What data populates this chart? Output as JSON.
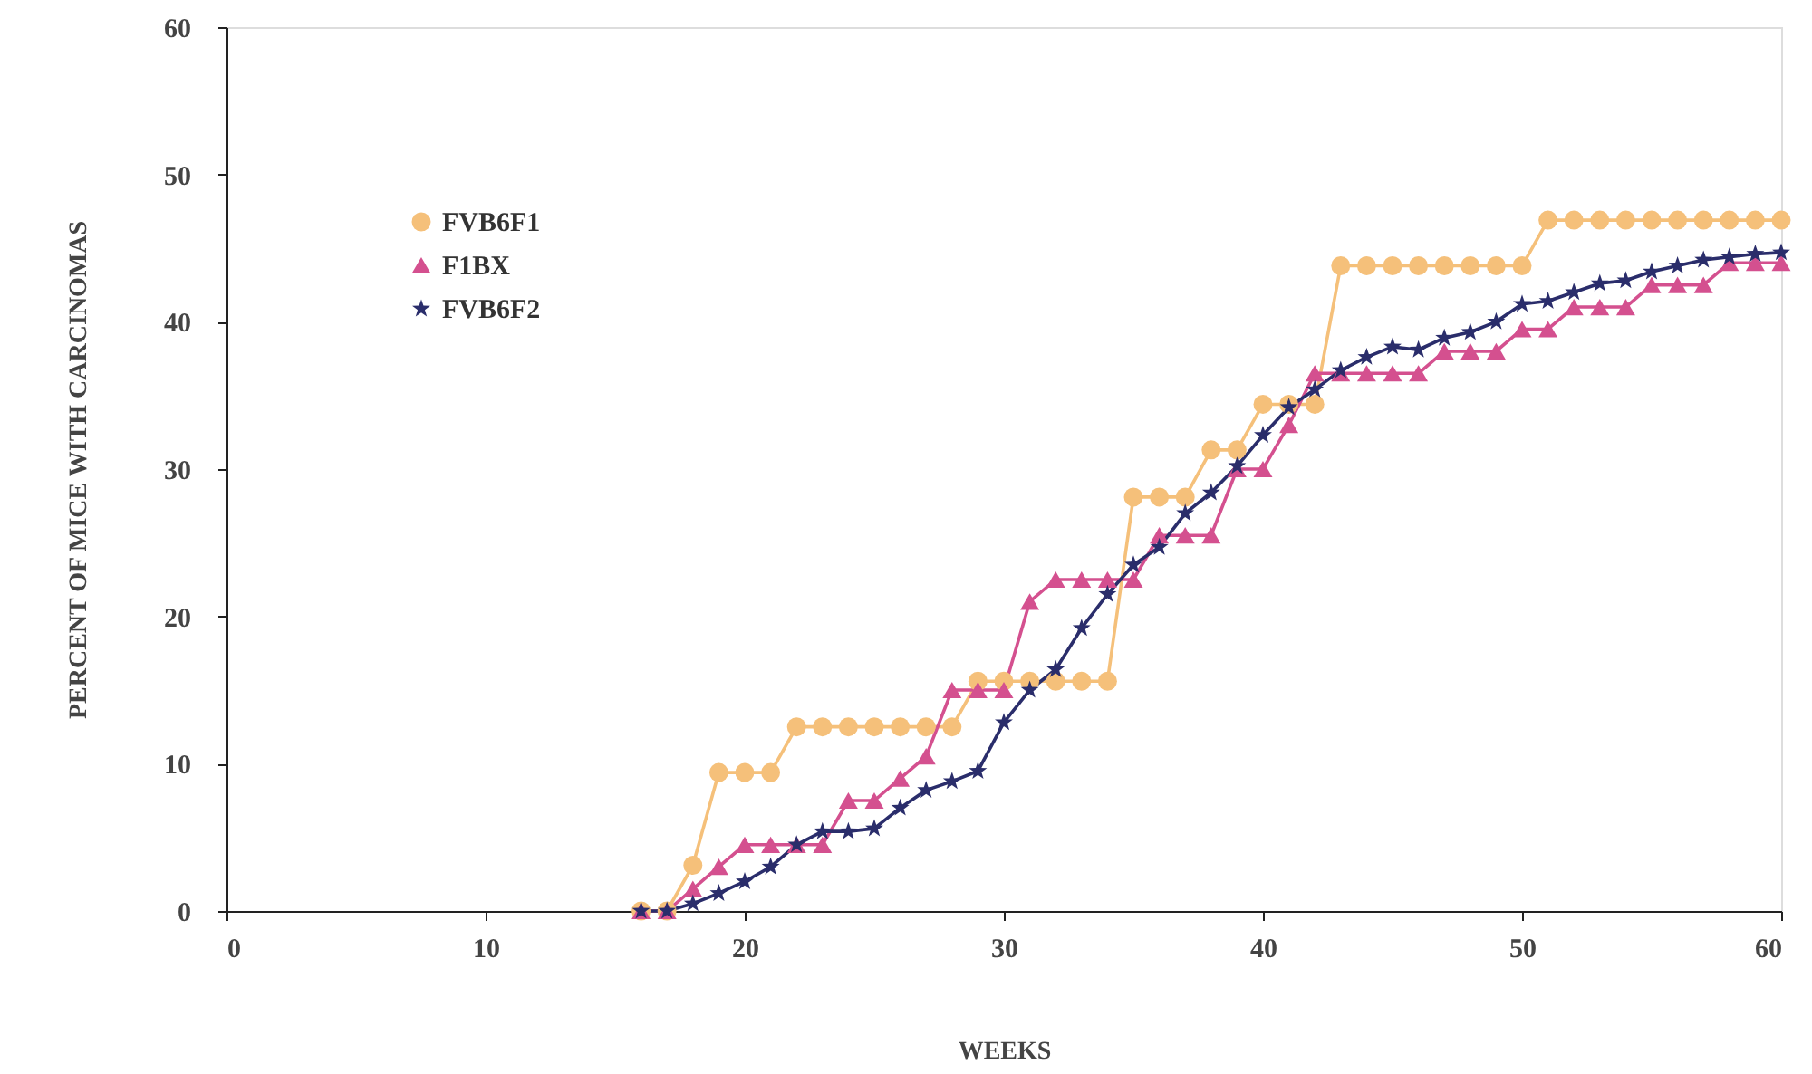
{
  "chart_data": {
    "type": "line",
    "xlabel": "WEEKS",
    "ylabel": "PERCENT OF MICE WITH CARCINOMAS",
    "x": [
      16,
      17,
      18,
      19,
      20,
      21,
      22,
      23,
      24,
      25,
      26,
      27,
      28,
      29,
      30,
      31,
      32,
      33,
      34,
      35,
      36,
      37,
      38,
      39,
      40,
      41,
      42,
      43,
      44,
      45,
      46,
      47,
      48,
      49,
      50,
      51,
      52,
      53,
      54,
      55,
      56,
      57,
      58,
      59,
      60
    ],
    "series": [
      {
        "name": "FVB6F1",
        "color": "#f5c07a",
        "marker": "circle",
        "values": [
          0,
          0,
          3.1,
          9.4,
          9.4,
          9.4,
          12.5,
          12.5,
          12.5,
          12.5,
          12.5,
          12.5,
          12.5,
          15.6,
          15.6,
          15.6,
          15.6,
          15.6,
          15.6,
          28.1,
          28.1,
          28.1,
          31.3,
          31.3,
          34.4,
          34.4,
          34.4,
          43.8,
          43.8,
          43.8,
          43.8,
          43.8,
          43.8,
          43.8,
          43.8,
          46.9,
          46.9,
          46.9,
          46.9,
          46.9,
          46.9,
          46.9,
          46.9,
          46.9,
          46.9
        ]
      },
      {
        "name": "F1BX",
        "color": "#d4508f",
        "marker": "triangle",
        "values": [
          0,
          0,
          1.5,
          3,
          4.5,
          4.5,
          4.5,
          4.5,
          7.5,
          7.5,
          9,
          10.5,
          15,
          15,
          15,
          21,
          22.5,
          22.5,
          22.5,
          22.5,
          25.5,
          25.5,
          25.5,
          30,
          30,
          33,
          36.5,
          36.5,
          36.5,
          36.5,
          36.5,
          38,
          38,
          38,
          39.5,
          39.5,
          41,
          41,
          41,
          42.5,
          42.5,
          42.5,
          44,
          44,
          44
        ]
      },
      {
        "name": "FVB6F2",
        "color": "#2a2d6b",
        "marker": "star",
        "values": [
          0,
          0,
          0.5,
          1.2,
          2,
          3,
          4.5,
          5.4,
          5.4,
          5.6,
          7,
          8.2,
          8.8,
          9.5,
          12.8,
          15,
          16.4,
          19.2,
          21.5,
          23.5,
          24.7,
          27,
          28.4,
          30.2,
          32.3,
          34.2,
          35.4,
          36.7,
          37.6,
          38.3,
          38.1,
          38.9,
          39.3,
          40,
          41.2,
          41.4,
          42,
          42.6,
          42.8,
          43.4,
          43.8,
          44.2,
          44.4,
          44.6,
          44.7
        ]
      }
    ],
    "xlim": [
      0,
      60
    ],
    "xticks": [
      0,
      10,
      20,
      30,
      40,
      50,
      60
    ],
    "ylim": [
      0,
      60
    ],
    "yticks": [
      0,
      10,
      20,
      30,
      40,
      50,
      60
    ],
    "grid": false,
    "legend": "top left",
    "line_style": "solid"
  }
}
